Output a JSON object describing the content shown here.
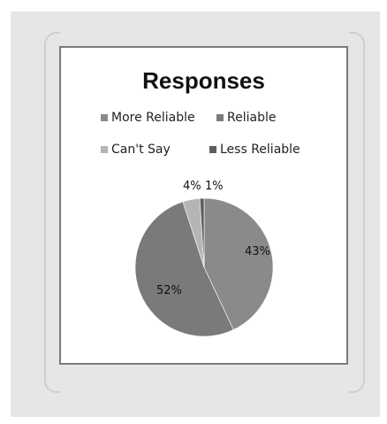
{
  "chart_data": {
    "type": "pie",
    "title": "Responses",
    "legend_placement": "top",
    "categories": [
      "More Reliable",
      "Reliable",
      "Can't Say",
      "Less Reliable"
    ],
    "values": [
      43,
      52,
      4,
      1
    ],
    "labels": [
      "43%",
      "52%",
      "4%",
      "1%"
    ],
    "colors": [
      "#8a8a8a",
      "#7a7a7a",
      "#b5b5b5",
      "#5e5e5e"
    ]
  }
}
